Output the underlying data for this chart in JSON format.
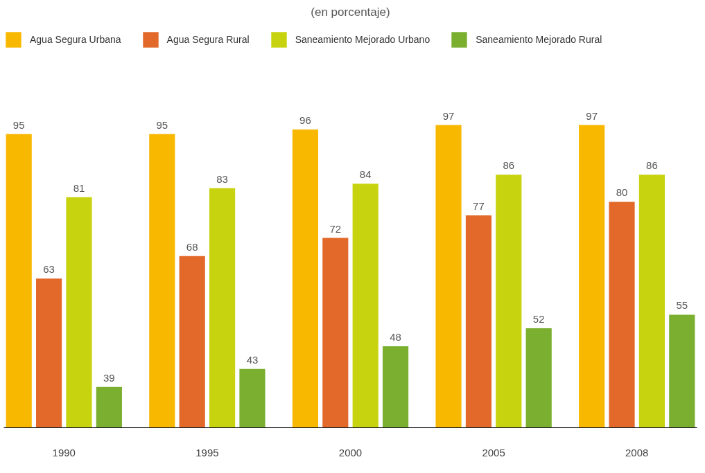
{
  "chart_data": {
    "type": "bar",
    "title": "(en porcentaje)",
    "categories": [
      "1990",
      "1995",
      "2000",
      "2005",
      "2008"
    ],
    "series": [
      {
        "name": "Agua Segura Urbana",
        "color": "#f9b800",
        "values": [
          95,
          95,
          96,
          97,
          97
        ]
      },
      {
        "name": "Agua Segura Rural",
        "color": "#e2692a",
        "values": [
          63,
          68,
          72,
          77,
          80
        ]
      },
      {
        "name": "Saneamiento Mejorado Urbano",
        "color": "#c8d30f",
        "values": [
          81,
          83,
          84,
          86,
          86
        ]
      },
      {
        "name": "Saneamiento Mejorado Rural",
        "color": "#7aaf30",
        "values": [
          39,
          43,
          48,
          52,
          55
        ]
      }
    ],
    "ylim": [
      30,
      97
    ],
    "tick_labels": "x",
    "grid": false,
    "legend": "top",
    "data_labels": true
  }
}
